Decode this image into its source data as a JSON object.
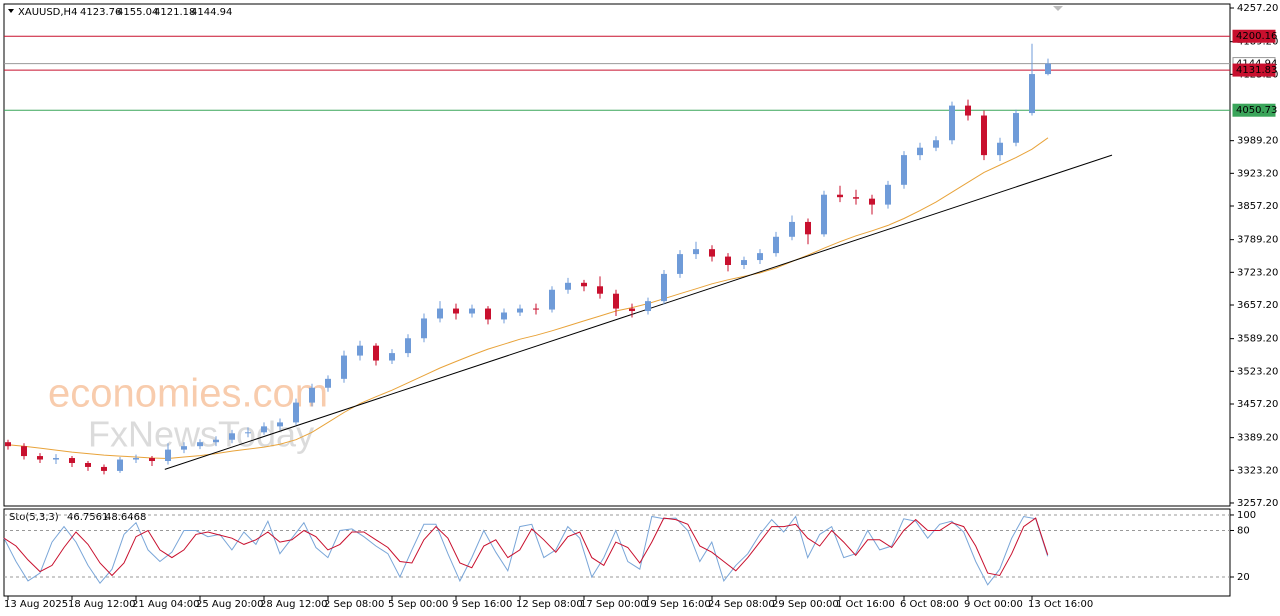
{
  "chart_data": [
    {
      "type": "candlestick",
      "title": "XAUUSD,H4",
      "xlim": [
        -0.25,
        76.375
      ],
      "ylim": [
        3251.1,
        4265.3
      ],
      "bull_color": "#6f9bd8",
      "bear_color": "#c8102e",
      "ohlc": [
        [
          3380,
          3385,
          3365,
          3372
        ],
        [
          3372,
          3378,
          3345,
          3352
        ],
        [
          3352,
          3358,
          3338,
          3345
        ],
        [
          3345,
          3356,
          3336,
          3348
        ],
        [
          3348,
          3352,
          3330,
          3338
        ],
        [
          3338,
          3342,
          3322,
          3330
        ],
        [
          3330,
          3335,
          3315,
          3322
        ],
        [
          3322,
          3350,
          3318,
          3345
        ],
        [
          3345,
          3355,
          3338,
          3348
        ],
        [
          3348,
          3352,
          3332,
          3342
        ],
        [
          3342,
          3378,
          3335,
          3365
        ],
        [
          3365,
          3380,
          3358,
          3372
        ],
        [
          3372,
          3386,
          3366,
          3380
        ],
        [
          3380,
          3392,
          3372,
          3385
        ],
        [
          3385,
          3405,
          3378,
          3398
        ],
        [
          3398,
          3410,
          3390,
          3400
        ],
        [
          3400,
          3420,
          3395,
          3412
        ],
        [
          3412,
          3428,
          3405,
          3420
        ],
        [
          3420,
          3468,
          3415,
          3460
        ],
        [
          3460,
          3498,
          3452,
          3490
        ],
        [
          3490,
          3515,
          3482,
          3508
        ],
        [
          3508,
          3565,
          3500,
          3555
        ],
        [
          3555,
          3585,
          3545,
          3575
        ],
        [
          3575,
          3580,
          3535,
          3545
        ],
        [
          3545,
          3568,
          3538,
          3560
        ],
        [
          3560,
          3598,
          3552,
          3590
        ],
        [
          3590,
          3640,
          3582,
          3630
        ],
        [
          3630,
          3665,
          3622,
          3650
        ],
        [
          3650,
          3660,
          3628,
          3640
        ],
        [
          3640,
          3658,
          3632,
          3650
        ],
        [
          3650,
          3655,
          3618,
          3628
        ],
        [
          3628,
          3650,
          3620,
          3642
        ],
        [
          3642,
          3658,
          3635,
          3650
        ],
        [
          3650,
          3660,
          3638,
          3648
        ],
        [
          3648,
          3695,
          3642,
          3688
        ],
        [
          3688,
          3712,
          3680,
          3702
        ],
        [
          3702,
          3708,
          3685,
          3695
        ],
        [
          3695,
          3715,
          3670,
          3680
        ],
        [
          3680,
          3688,
          3635,
          3650
        ],
        [
          3650,
          3660,
          3632,
          3645
        ],
        [
          3645,
          3672,
          3638,
          3665
        ],
        [
          3665,
          3728,
          3658,
          3720
        ],
        [
          3720,
          3768,
          3712,
          3760
        ],
        [
          3760,
          3785,
          3750,
          3770
        ],
        [
          3770,
          3778,
          3745,
          3755
        ],
        [
          3755,
          3762,
          3725,
          3738
        ],
        [
          3738,
          3755,
          3730,
          3748
        ],
        [
          3748,
          3770,
          3740,
          3762
        ],
        [
          3762,
          3805,
          3755,
          3795
        ],
        [
          3795,
          3838,
          3788,
          3825
        ],
        [
          3825,
          3832,
          3780,
          3800
        ],
        [
          3800,
          3888,
          3795,
          3880
        ],
        [
          3880,
          3898,
          3865,
          3875
        ],
        [
          3875,
          3890,
          3860,
          3872
        ],
        [
          3872,
          3880,
          3840,
          3860
        ],
        [
          3860,
          3908,
          3852,
          3900
        ],
        [
          3900,
          3968,
          3892,
          3960
        ],
        [
          3960,
          3985,
          3950,
          3975
        ],
        [
          3975,
          3998,
          3968,
          3990
        ],
        [
          3990,
          4068,
          3982,
          4060
        ],
        [
          4060,
          4072,
          4030,
          4040
        ],
        [
          4040,
          4050,
          3950,
          3960
        ],
        [
          3960,
          3995,
          3948,
          3985
        ],
        [
          3985,
          4052,
          3978,
          4045
        ],
        [
          4045,
          4185,
          4040,
          4123.76
        ],
        [
          4123.76,
          4155.04,
          4121.18,
          4144.94
        ]
      ],
      "ma": {
        "color": "#e8a33a",
        "values": [
          3375,
          3372,
          3368,
          3364,
          3360,
          3357,
          3354,
          3352,
          3350,
          3348,
          3347,
          3350,
          3353,
          3357,
          3362,
          3366,
          3370,
          3376,
          3385,
          3400,
          3420,
          3440,
          3458,
          3472,
          3485,
          3500,
          3515,
          3530,
          3543,
          3556,
          3568,
          3578,
          3588,
          3596,
          3605,
          3615,
          3625,
          3635,
          3645,
          3652,
          3660,
          3670,
          3680,
          3690,
          3700,
          3708,
          3715,
          3722,
          3732,
          3745,
          3758,
          3772,
          3785,
          3797,
          3807,
          3818,
          3832,
          3848,
          3865,
          3885,
          3905,
          3925,
          3940,
          3955,
          3972,
          3995
        ]
      },
      "trendline": {
        "color": "#000000",
        "x": [
          9.8,
          69
        ],
        "values": [
          3325,
          3960
        ]
      },
      "levels": [
        {
          "value": 4144.94,
          "color": "#9a9a9a",
          "text_color": "#000000"
        },
        {
          "value": 4200.16,
          "color": "#c8102e",
          "text_color": "#ffffff"
        },
        {
          "value": 4131.83,
          "color": "#c8102e",
          "text_color": "#ffffff"
        },
        {
          "value": 4050.73,
          "color": "#3aa55a",
          "text_color": "#ffffff"
        }
      ],
      "yticks": [
        {
          "value": 4257.2,
          "label": "4257.20"
        },
        {
          "value": 4189.2,
          "label": "4189.20"
        },
        {
          "value": 4123.2,
          "label": "4123.20"
        },
        {
          "value": 3989.2,
          "label": "3989.20"
        },
        {
          "value": 3923.2,
          "label": "3923.20"
        },
        {
          "value": 3857.2,
          "label": "3857.20"
        },
        {
          "value": 3789.2,
          "label": "3789.20"
        },
        {
          "value": 3723.2,
          "label": "3723.20"
        },
        {
          "value": 3657.2,
          "label": "3657.20"
        },
        {
          "value": 3589.2,
          "label": "3589.20"
        },
        {
          "value": 3523.2,
          "label": "3523.20"
        },
        {
          "value": 3457.2,
          "label": "3457.20"
        },
        {
          "value": 3389.2,
          "label": "3389.20"
        },
        {
          "value": 3323.2,
          "label": "3323.20"
        },
        {
          "value": 3257.2,
          "label": "3257.20"
        }
      ],
      "xticks": [
        {
          "value": 0,
          "label": "13 Aug 2025"
        },
        {
          "value": 4,
          "label": "18 Aug 12:00"
        },
        {
          "value": 8,
          "label": "21 Aug 04:00"
        },
        {
          "value": 12,
          "label": "25 Aug 20:00"
        },
        {
          "value": 16,
          "label": "28 Aug 12:00"
        },
        {
          "value": 20,
          "label": "2 Sep 08:00"
        },
        {
          "value": 24,
          "label": "5 Sep 00:00"
        },
        {
          "value": 28,
          "label": "9 Sep 16:00"
        },
        {
          "value": 32,
          "label": "12 Sep 08:00"
        },
        {
          "value": 36,
          "label": "17 Sep 00:00"
        },
        {
          "value": 40,
          "label": "19 Sep 16:00"
        },
        {
          "value": 44,
          "label": "24 Sep 08:00"
        },
        {
          "value": 48,
          "label": "29 Sep 00:00"
        },
        {
          "value": 52,
          "label": "1 Oct 16:00"
        },
        {
          "value": 56,
          "label": "6 Oct 08:00"
        },
        {
          "value": 60,
          "label": "9 Oct 00:00"
        },
        {
          "value": 64,
          "label": "13 Oct 16:00"
        }
      ]
    },
    {
      "type": "line",
      "title": "Sto(5,3,3)",
      "xlim": [
        0,
        102.2
      ],
      "ylim": [
        -4.5,
        107.7
      ],
      "yticks": [
        100,
        80,
        20
      ],
      "series": [
        {
          "color": "#7aa6d8",
          "values": [
            70,
            40,
            15,
            25,
            65,
            85,
            65,
            35,
            12,
            30,
            75,
            90,
            55,
            40,
            52,
            80,
            80,
            72,
            75,
            55,
            78,
            62,
            92,
            50,
            70,
            90,
            58,
            45,
            80,
            82,
            72,
            60,
            50,
            20,
            55,
            88,
            88,
            50,
            15,
            45,
            80,
            52,
            28,
            85,
            88,
            45,
            55,
            85,
            70,
            20,
            45,
            80,
            40,
            30,
            98,
            95,
            96,
            80,
            40,
            65,
            15,
            35,
            50,
            75,
            94,
            78,
            98,
            45,
            75,
            85,
            45,
            50,
            80,
            55,
            60,
            95,
            92,
            70,
            88,
            92,
            78,
            40,
            10,
            30,
            70,
            98,
            95,
            46.7561
          ]
        },
        {
          "color": "#c8102e",
          "values": [
            70,
            60,
            42,
            27,
            35,
            58,
            78,
            62,
            38,
            22,
            38,
            72,
            80,
            55,
            45,
            55,
            75,
            78,
            74,
            70,
            62,
            68,
            78,
            65,
            68,
            80,
            72,
            55,
            62,
            78,
            78,
            68,
            58,
            40,
            38,
            68,
            85,
            70,
            38,
            32,
            60,
            68,
            45,
            55,
            82,
            68,
            52,
            72,
            78,
            45,
            35,
            65,
            58,
            38,
            65,
            96,
            94,
            88,
            60,
            52,
            40,
            28,
            45,
            65,
            85,
            85,
            88,
            70,
            60,
            80,
            65,
            48,
            68,
            68,
            58,
            80,
            94,
            80,
            80,
            90,
            85,
            60,
            25,
            22,
            50,
            85,
            96,
            48.6468
          ]
        }
      ]
    }
  ],
  "watermark": [
    "economies.com",
    "FxNewsToday"
  ]
}
